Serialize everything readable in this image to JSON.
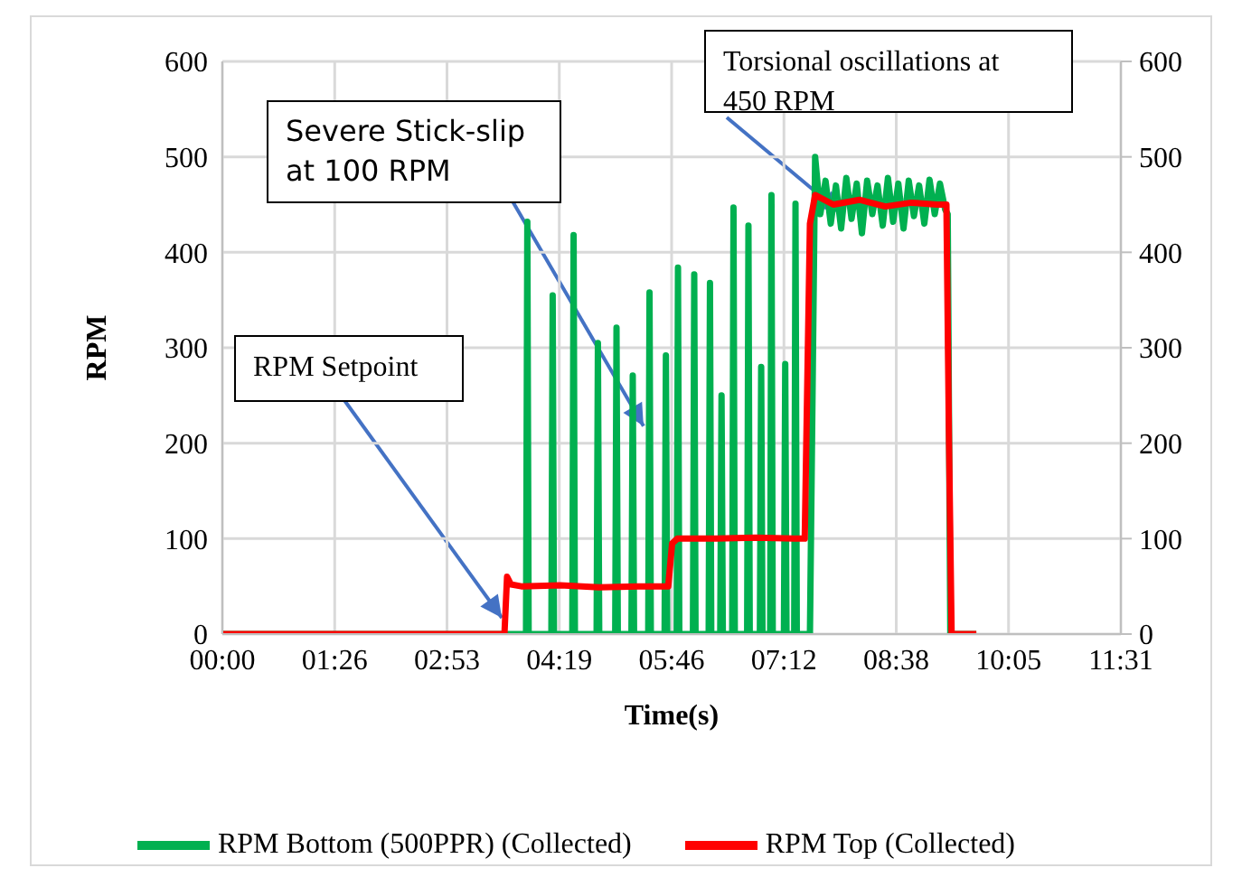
{
  "chart_data": {
    "type": "line",
    "xlabel": "Time(s)",
    "ylabel": "RPM",
    "xlim": [
      0,
      691.2
    ],
    "xticks": [
      {
        "value": 0,
        "label": "00:00"
      },
      {
        "value": 86.4,
        "label": "01:26"
      },
      {
        "value": 172.8,
        "label": "02:53"
      },
      {
        "value": 259.2,
        "label": "04:19"
      },
      {
        "value": 345.6,
        "label": "05:46"
      },
      {
        "value": 432,
        "label": "07:12"
      },
      {
        "value": 518.4,
        "label": "08:38"
      },
      {
        "value": 604.8,
        "label": "10:05"
      },
      {
        "value": 691.2,
        "label": "11:31"
      }
    ],
    "ylim": [
      0,
      600
    ],
    "yticks": [
      0,
      100,
      200,
      300,
      400,
      500,
      600
    ],
    "y2lim": [
      0,
      600
    ],
    "y2ticks": [
      0,
      100,
      200,
      300,
      400,
      500,
      600
    ],
    "grid": true,
    "legend": "bottom",
    "marker": "none",
    "line_style": "solid",
    "annotations": [
      {
        "text": "RPM Setpoint",
        "x": 215,
        "y": 17
      },
      {
        "text": "Severe Stick-slip at 100 RPM",
        "x": 324,
        "y": 218
      },
      {
        "text": "Torsional oscillations at 450 RPM",
        "x": 476,
        "y": 441
      }
    ],
    "series": [
      {
        "name": "RPM Bottom (500PPR) (Collected)",
        "color": "#00b050",
        "x": [
          0,
          225,
          233.6,
          234.6,
          235.6,
          253.1,
          254.1,
          255.1,
          269.2,
          270.2,
          271.2,
          287.9,
          288.9,
          289.9,
          302.2,
          303.2,
          304.2,
          314.7,
          315.7,
          316.7,
          327.6,
          328.6,
          329.6,
          340.2,
          341.2,
          342.2,
          349.5,
          350.5,
          351.5,
          362,
          363,
          364,
          374.1,
          375.1,
          376.1,
          383,
          384,
          385,
          392.2,
          393.2,
          394.2,
          403.7,
          404.7,
          405.7,
          413.5,
          414.5,
          415.5,
          421.4,
          422.4,
          423.4,
          432,
          433,
          434,
          439.9,
          440.9,
          441.9,
          452,
          456,
          460,
          464,
          468,
          472,
          476,
          480,
          484,
          488,
          492,
          496,
          500,
          504,
          508,
          512,
          516,
          520,
          524,
          528,
          532,
          536,
          540,
          544,
          548,
          552,
          556,
          558,
          560,
          580
        ],
        "values": [
          0,
          0,
          0,
          432,
          0,
          0,
          355,
          0,
          0,
          418,
          0,
          0,
          305,
          0,
          0,
          321,
          0,
          0,
          271,
          0,
          0,
          358,
          0,
          0,
          292,
          0,
          0,
          384,
          0,
          0,
          377,
          0,
          0,
          368,
          0,
          0,
          250,
          0,
          0,
          447,
          0,
          0,
          428,
          0,
          0,
          280,
          0,
          0,
          460,
          0,
          0,
          283,
          0,
          0,
          451,
          0,
          0,
          500,
          440,
          475,
          430,
          470,
          425,
          478,
          435,
          472,
          420,
          475,
          440,
          470,
          428,
          478,
          432,
          472,
          425,
          475,
          438,
          470,
          430,
          476,
          440,
          472,
          445,
          440,
          0,
          0
        ]
      },
      {
        "name": "RPM Top (Collected)",
        "color": "#ff0000",
        "x": [
          0,
          217,
          219,
          222,
          230,
          260,
          290,
          320,
          343,
          346,
          350,
          380,
          410,
          440,
          448,
          452,
          456,
          470,
          490,
          510,
          530,
          550,
          557,
          559,
          561,
          580
        ],
        "values": [
          0,
          0,
          60,
          52,
          50,
          51,
          49,
          50,
          50,
          95,
          100,
          100,
          101,
          100,
          100,
          430,
          460,
          450,
          455,
          448,
          452,
          450,
          450,
          200,
          0,
          0
        ]
      }
    ]
  }
}
